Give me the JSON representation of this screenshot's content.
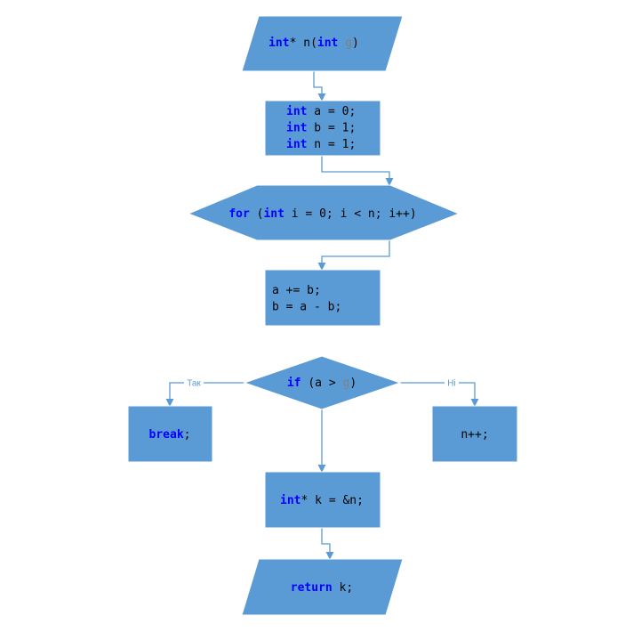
{
  "colors": {
    "shape_fill": "#5b9bd5",
    "shape_stroke": "#ffffff",
    "connector": "#5b9bd5",
    "keyword": "#0000ff",
    "identifier": "#000000",
    "param": "#808080",
    "background": "#ffffff"
  },
  "nodes": {
    "func_signature": {
      "shape": "parallelogram",
      "lines": [
        [
          {
            "t": "int",
            "k": "kw"
          },
          {
            "t": "* n(",
            "k": "id"
          },
          {
            "t": "int",
            "k": "kw"
          },
          {
            "t": " ",
            "k": "id"
          },
          {
            "t": "g",
            "k": "param"
          },
          {
            "t": ")",
            "k": "id"
          }
        ]
      ]
    },
    "init_block": {
      "shape": "rectangle",
      "lines": [
        [
          {
            "t": "int",
            "k": "kw"
          },
          {
            "t": " a = 0;",
            "k": "id"
          }
        ],
        [
          {
            "t": "int",
            "k": "kw"
          },
          {
            "t": " b = 1;",
            "k": "id"
          }
        ],
        [
          {
            "t": "int",
            "k": "kw"
          },
          {
            "t": " n = 1;",
            "k": "id"
          }
        ]
      ]
    },
    "for_loop": {
      "shape": "hexagon",
      "lines": [
        [
          {
            "t": "for",
            "k": "kw"
          },
          {
            "t": " (",
            "k": "id"
          },
          {
            "t": "int",
            "k": "kw"
          },
          {
            "t": " i = 0; i < n; i++)",
            "k": "id"
          }
        ]
      ]
    },
    "loop_body": {
      "shape": "rectangle",
      "lines": [
        [
          {
            "t": "a += b;",
            "k": "id"
          }
        ],
        [
          {
            "t": "b = a - b;",
            "k": "id"
          }
        ]
      ]
    },
    "if_condition": {
      "shape": "diamond",
      "lines": [
        [
          {
            "t": "if",
            "k": "kw"
          },
          {
            "t": " (a > ",
            "k": "id"
          },
          {
            "t": "g",
            "k": "param"
          },
          {
            "t": ")",
            "k": "id"
          }
        ]
      ]
    },
    "break_block": {
      "shape": "rectangle",
      "lines": [
        [
          {
            "t": "break",
            "k": "kw"
          },
          {
            "t": ";",
            "k": "id"
          }
        ]
      ]
    },
    "increment_block": {
      "shape": "rectangle",
      "lines": [
        [
          {
            "t": "n++;",
            "k": "id"
          }
        ]
      ]
    },
    "pointer_assign": {
      "shape": "rectangle",
      "lines": [
        [
          {
            "t": "int",
            "k": "kw"
          },
          {
            "t": "* k = &n;",
            "k": "id"
          }
        ]
      ]
    },
    "return_block": {
      "shape": "parallelogram",
      "lines": [
        [
          {
            "t": "return",
            "k": "kw"
          },
          {
            "t": " k;",
            "k": "id"
          }
        ]
      ]
    }
  },
  "edges": [
    {
      "from": "func_signature",
      "to": "init_block",
      "label": ""
    },
    {
      "from": "init_block",
      "to": "for_loop",
      "label": ""
    },
    {
      "from": "for_loop",
      "to": "loop_body",
      "label": ""
    },
    {
      "from": "if_condition",
      "to": "break_block",
      "label": "Так"
    },
    {
      "from": "if_condition",
      "to": "increment_block",
      "label": "Ні"
    },
    {
      "from": "if_condition",
      "to": "pointer_assign",
      "label": ""
    },
    {
      "from": "pointer_assign",
      "to": "return_block",
      "label": ""
    }
  ]
}
